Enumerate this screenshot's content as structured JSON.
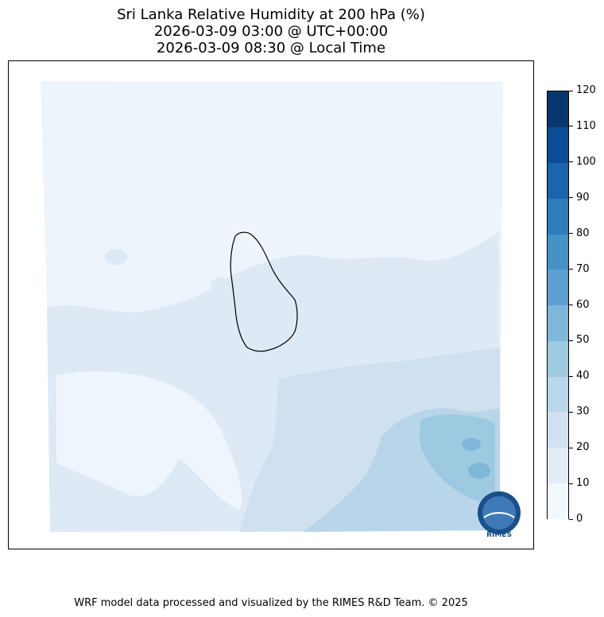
{
  "title": {
    "line1": "Sri Lanka Relative Humidity at 200 hPa (%)",
    "line2": "2026-03-09 03:00 @ UTC+00:00",
    "line3": "2026-03-09 08:30 @ Local Time"
  },
  "colorbar": {
    "levels": [
      "0",
      "10",
      "20",
      "30",
      "40",
      "50",
      "60",
      "70",
      "80",
      "90",
      "100",
      "110",
      "120"
    ],
    "colors": [
      "#f3f8fd",
      "#e2edf8",
      "#d0e1f2",
      "#b9d6ea",
      "#9dc9e1",
      "#7fb7d9",
      "#5ea0cf",
      "#4592c6",
      "#2e7dbb",
      "#1b65ab",
      "#0b4e95",
      "#08376d"
    ]
  },
  "map": {
    "region": "Sri Lanka",
    "variable": "Relative Humidity",
    "level": "200 hPa",
    "logo_text": "RIMES"
  },
  "footer": "WRF model data processed and visualized by the RIMES R&D Team. © 2025"
}
